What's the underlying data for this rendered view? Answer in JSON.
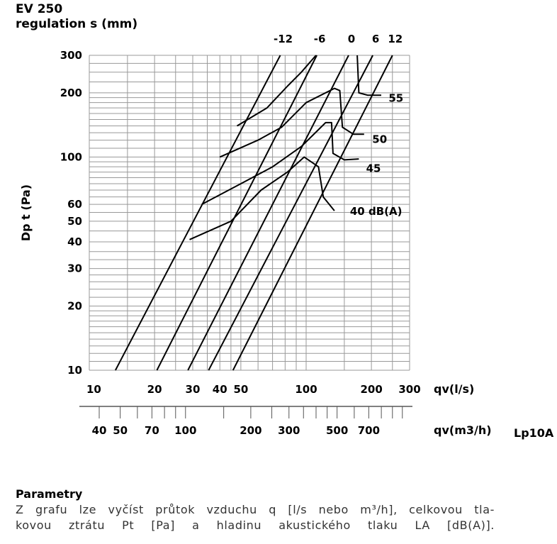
{
  "header": {
    "title": "EV 250",
    "subtitle": "regulation s (mm)"
  },
  "chart_data": {
    "type": "line",
    "title": "EV 250",
    "subtitle": "regulation s (mm)",
    "ylabel": "Dp t (Pa)",
    "xlabel": "qv(l/s)",
    "xlabel2": "qv(m3/h)",
    "extra_label": "Lp10A",
    "xscale": "log",
    "yscale": "log",
    "xlim": [
      10,
      300
    ],
    "ylim": [
      10,
      300
    ],
    "grid": true,
    "x_ticks": [
      "10",
      "20",
      "30",
      "40",
      "50",
      "100",
      "200",
      "300"
    ],
    "x2_ticks": [
      "40",
      "50",
      "70",
      "100",
      "200",
      "300",
      "500",
      "700"
    ],
    "y_ticks": [
      "10",
      "20",
      "30",
      "40",
      "50",
      "60",
      "100",
      "200",
      "300"
    ],
    "series": [
      {
        "name": "-12",
        "points": [
          [
            13.2,
            10
          ],
          [
            76,
            300
          ]
        ]
      },
      {
        "name": "-6",
        "points": [
          [
            20.5,
            10
          ],
          [
            112,
            300
          ]
        ]
      },
      {
        "name": "0",
        "points": [
          [
            28.5,
            10
          ],
          [
            157,
            300
          ]
        ]
      },
      {
        "name": "6",
        "points": [
          [
            35.5,
            10
          ],
          [
            203,
            300
          ]
        ]
      },
      {
        "name": "12",
        "points": [
          [
            46,
            10
          ],
          [
            250,
            300
          ]
        ]
      }
    ],
    "noise_curves": [
      {
        "name": "40 dB(A)",
        "points": [
          [
            29,
            41
          ],
          [
            45,
            50
          ],
          [
            62,
            70
          ],
          [
            82,
            85
          ],
          [
            98,
            100
          ],
          [
            114,
            90
          ],
          [
            120,
            65
          ],
          [
            135,
            56
          ]
        ]
      },
      {
        "name": "45",
        "points": [
          [
            33,
            60
          ],
          [
            50,
            75
          ],
          [
            70,
            90
          ],
          [
            95,
            112
          ],
          [
            123,
            145
          ],
          [
            131,
            145
          ],
          [
            133,
            104
          ],
          [
            150,
            97
          ],
          [
            175,
            98
          ]
        ]
      },
      {
        "name": "50",
        "points": [
          [
            40,
            100
          ],
          [
            60,
            120
          ],
          [
            77,
            138
          ],
          [
            100,
            180
          ],
          [
            135,
            210
          ],
          [
            143,
            205
          ],
          [
            147,
            138
          ],
          [
            165,
            128
          ],
          [
            185,
            128
          ]
        ]
      },
      {
        "name": "55",
        "points": [
          [
            48,
            140
          ],
          [
            66,
            170
          ],
          [
            82,
            215
          ],
          [
            95,
            250
          ],
          [
            111,
            300
          ]
        ],
        "tail": [
          [
            172,
            300
          ],
          [
            175,
            200
          ],
          [
            192,
            195
          ],
          [
            222,
            195
          ]
        ]
      }
    ]
  },
  "params": {
    "title": "Parametry",
    "line1": "Z grafu lze vyčíst průtok vzduchu q [l/s nebo m³/h], celkovou tla-",
    "line2": "kovou ztrátu Pt [Pa] a hladinu akustického tlaku LA [dB(A)]."
  }
}
